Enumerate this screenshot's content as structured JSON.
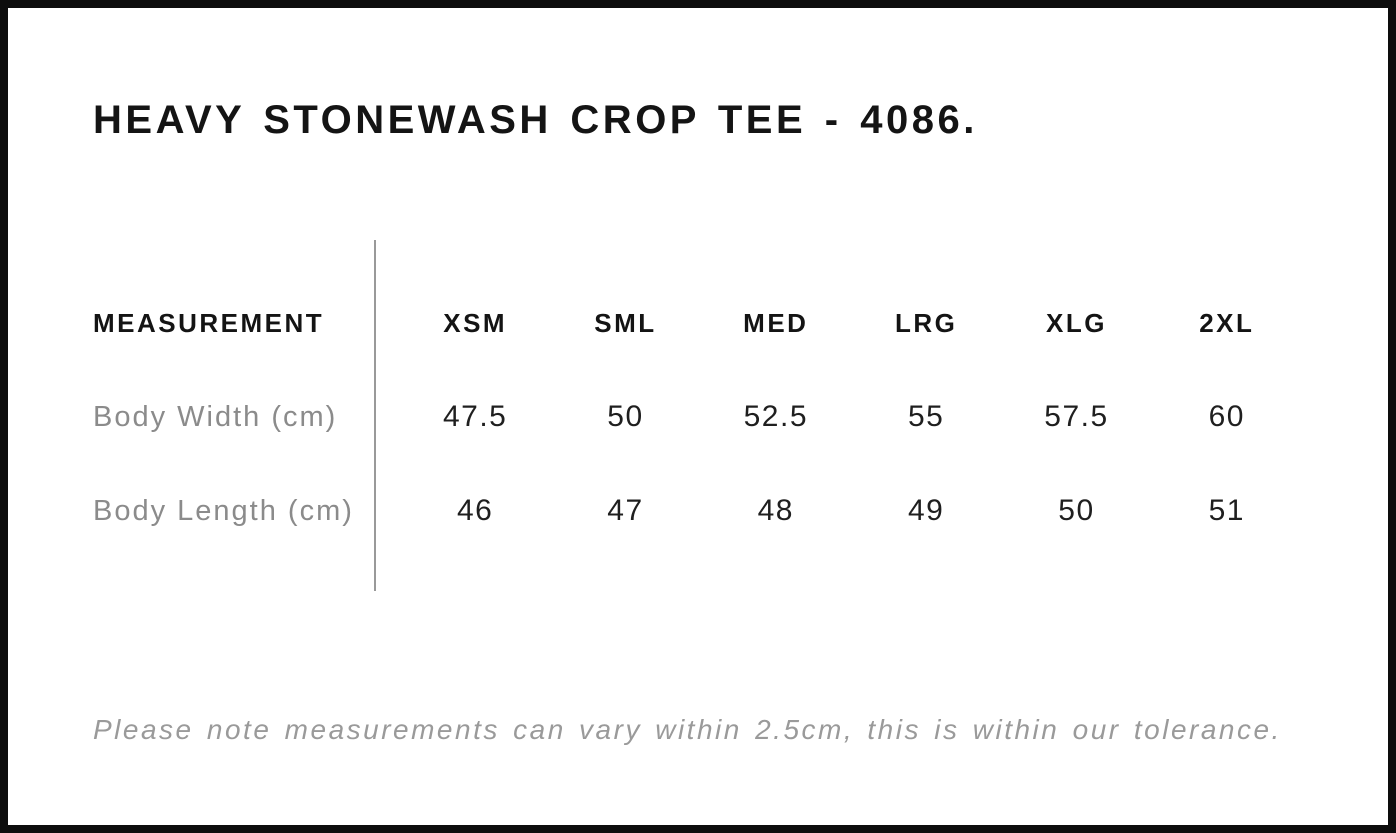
{
  "page": {
    "title": "HEAVY STONEWASH CROP TEE - 4086.",
    "footnote": "Please note measurements can vary within 2.5cm, this is within our tolerance."
  },
  "size_chart": {
    "columns": [
      "MEASUREMENT",
      "XSM",
      "SML",
      "MED",
      "LRG",
      "XLG",
      "2XL"
    ],
    "rows": [
      {
        "label": "Body Width (cm)",
        "values": [
          "47.5",
          "50",
          "52.5",
          "55",
          "57.5",
          "60"
        ]
      },
      {
        "label": "Body Length (cm)",
        "values": [
          "46",
          "47",
          "48",
          "49",
          "50",
          "51"
        ]
      }
    ]
  },
  "colors": {
    "background": "#ffffff",
    "frame_border": "#0d0d0d",
    "heading_text": "#141414",
    "value_text": "#1f1f1f",
    "row_label_gray": "#8b8b8b",
    "footnote_gray": "#9a9a9a",
    "divider_gray": "#999999"
  }
}
